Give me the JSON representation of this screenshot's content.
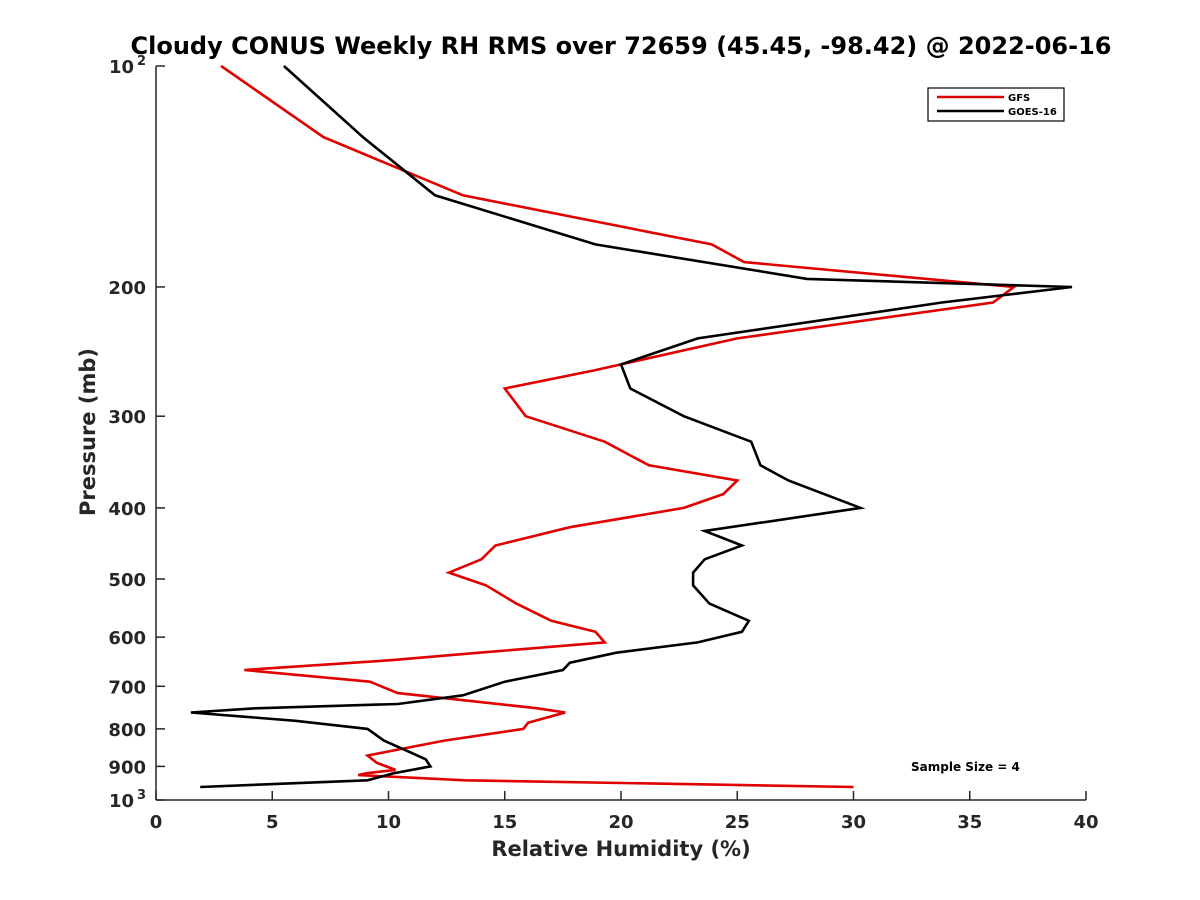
{
  "chart_data": {
    "type": "line",
    "title": "Cloudy CONUS Weekly RH RMS over 72659 (45.45, -98.42) @ 2022-06-16",
    "xlabel": "Relative Humidity (%)",
    "ylabel": "Pressure (mb)",
    "xlim": [
      0,
      40
    ],
    "ylim": [
      100,
      1000
    ],
    "y_scale": "log",
    "y_reversed": true,
    "x_ticks": [
      "0",
      "5",
      "10",
      "15",
      "20",
      "25",
      "30",
      "35",
      "40"
    ],
    "x_tick_values": [
      0,
      5,
      10,
      15,
      20,
      25,
      30,
      35,
      40
    ],
    "y_ticks": [
      {
        "value": 100,
        "label": "10",
        "exp": "2"
      },
      {
        "value": 200,
        "label": "200",
        "exp": ""
      },
      {
        "value": 300,
        "label": "300",
        "exp": ""
      },
      {
        "value": 400,
        "label": "400",
        "exp": ""
      },
      {
        "value": 500,
        "label": "500",
        "exp": ""
      },
      {
        "value": 600,
        "label": "600",
        "exp": ""
      },
      {
        "value": 700,
        "label": "700",
        "exp": ""
      },
      {
        "value": 800,
        "label": "800",
        "exp": ""
      },
      {
        "value": 900,
        "label": "900",
        "exp": ""
      },
      {
        "value": 1000,
        "label": "10",
        "exp": "3"
      }
    ],
    "legend_position": "top-right",
    "annotation": "Sample Size = 4",
    "series": [
      {
        "name": "GFS",
        "color": "#e00000",
        "points": [
          [
            2.8,
            100
          ],
          [
            7.2,
            125
          ],
          [
            13.2,
            150
          ],
          [
            23.9,
            175
          ],
          [
            25.3,
            185
          ],
          [
            36.9,
            200
          ],
          [
            36.0,
            210
          ],
          [
            25.0,
            235
          ],
          [
            18.8,
            260
          ],
          [
            15.0,
            275
          ],
          [
            15.9,
            300
          ],
          [
            19.3,
            325
          ],
          [
            21.2,
            350
          ],
          [
            25.0,
            367
          ],
          [
            24.4,
            383
          ],
          [
            22.7,
            400
          ],
          [
            17.8,
            425
          ],
          [
            14.6,
            450
          ],
          [
            14.0,
            470
          ],
          [
            12.6,
            490
          ],
          [
            14.2,
            510
          ],
          [
            15.5,
            540
          ],
          [
            17.0,
            570
          ],
          [
            18.9,
            590
          ],
          [
            19.3,
            610
          ],
          [
            13.9,
            630
          ],
          [
            10.1,
            645
          ],
          [
            3.8,
            665
          ],
          [
            9.2,
            690
          ],
          [
            10.4,
            715
          ],
          [
            16.4,
            750
          ],
          [
            17.6,
            760
          ],
          [
            16.0,
            785
          ],
          [
            15.8,
            800
          ],
          [
            12.4,
            830
          ],
          [
            9.9,
            860
          ],
          [
            9.1,
            870
          ],
          [
            9.5,
            890
          ],
          [
            10.3,
            910
          ],
          [
            9.0,
            920
          ],
          [
            8.7,
            925
          ],
          [
            13.3,
            940
          ],
          [
            30.0,
            960
          ]
        ]
      },
      {
        "name": "GOES-16",
        "color": "#000000",
        "points": [
          [
            5.5,
            100
          ],
          [
            8.9,
            125
          ],
          [
            12.0,
            150
          ],
          [
            18.9,
            175
          ],
          [
            28.0,
            195
          ],
          [
            39.4,
            200
          ],
          [
            33.8,
            210
          ],
          [
            23.3,
            235
          ],
          [
            20.0,
            255
          ],
          [
            20.4,
            275
          ],
          [
            22.7,
            300
          ],
          [
            25.6,
            325
          ],
          [
            26.0,
            350
          ],
          [
            27.2,
            367
          ],
          [
            30.3,
            400
          ],
          [
            23.6,
            430
          ],
          [
            25.2,
            450
          ],
          [
            23.6,
            470
          ],
          [
            23.1,
            490
          ],
          [
            23.1,
            510
          ],
          [
            23.8,
            540
          ],
          [
            25.5,
            570
          ],
          [
            25.2,
            590
          ],
          [
            23.3,
            610
          ],
          [
            19.8,
            630
          ],
          [
            17.8,
            650
          ],
          [
            17.5,
            665
          ],
          [
            15.0,
            690
          ],
          [
            13.2,
            720
          ],
          [
            10.4,
            740
          ],
          [
            4.3,
            750
          ],
          [
            1.5,
            760
          ],
          [
            6.0,
            780
          ],
          [
            9.1,
            800
          ],
          [
            9.8,
            830
          ],
          [
            10.9,
            860
          ],
          [
            11.6,
            880
          ],
          [
            11.8,
            900
          ],
          [
            10.2,
            920
          ],
          [
            9.1,
            940
          ],
          [
            1.9,
            960
          ]
        ]
      }
    ]
  }
}
